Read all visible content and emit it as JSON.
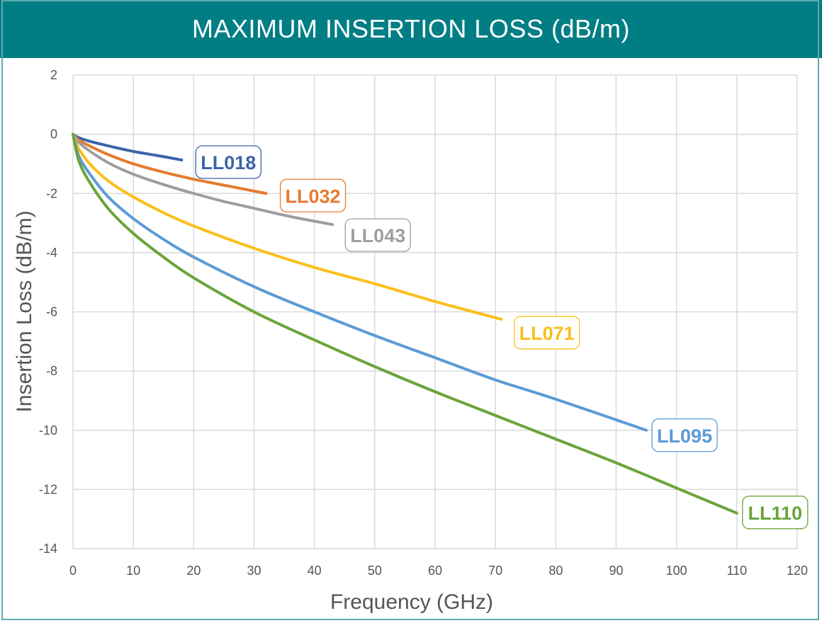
{
  "header": {
    "title": "MAXIMUM INSERTION LOSS (dB/m)"
  },
  "chart_data": {
    "type": "line",
    "title": "MAXIMUM INSERTION LOSS (dB/m)",
    "xlabel": "Frequency (GHz)",
    "ylabel": "Insertion Loss (dB/m)",
    "xlim": [
      0,
      120
    ],
    "ylim": [
      -14,
      2
    ],
    "xticks": [
      0,
      10,
      20,
      30,
      40,
      50,
      60,
      70,
      80,
      90,
      100,
      110,
      120
    ],
    "yticks": [
      2,
      0,
      -2,
      -4,
      -6,
      -8,
      -10,
      -12,
      -14
    ],
    "grid": true,
    "legend": "inline-labels",
    "series": [
      {
        "name": "LL018",
        "color": "#3c64a8",
        "points": [
          [
            0,
            0
          ],
          [
            1,
            -0.12
          ],
          [
            3,
            -0.25
          ],
          [
            6,
            -0.4
          ],
          [
            10,
            -0.58
          ],
          [
            14,
            -0.72
          ],
          [
            18,
            -0.87
          ]
        ]
      },
      {
        "name": "LL032",
        "color": "#e67a30",
        "points": [
          [
            0,
            0
          ],
          [
            1,
            -0.2
          ],
          [
            3,
            -0.42
          ],
          [
            6,
            -0.7
          ],
          [
            10,
            -1.0
          ],
          [
            15,
            -1.28
          ],
          [
            20,
            -1.52
          ],
          [
            26,
            -1.76
          ],
          [
            32,
            -2.0
          ]
        ]
      },
      {
        "name": "LL043",
        "color": "#9e9e9e",
        "points": [
          [
            0,
            0
          ],
          [
            1,
            -0.28
          ],
          [
            3,
            -0.6
          ],
          [
            6,
            -0.98
          ],
          [
            10,
            -1.35
          ],
          [
            15,
            -1.7
          ],
          [
            20,
            -2.0
          ],
          [
            25,
            -2.27
          ],
          [
            30,
            -2.5
          ],
          [
            36,
            -2.78
          ],
          [
            43,
            -3.05
          ]
        ]
      },
      {
        "name": "LL071",
        "color": "#fbbf1a",
        "points": [
          [
            0,
            0
          ],
          [
            1,
            -0.5
          ],
          [
            3,
            -1.05
          ],
          [
            6,
            -1.6
          ],
          [
            10,
            -2.12
          ],
          [
            15,
            -2.65
          ],
          [
            20,
            -3.1
          ],
          [
            30,
            -3.85
          ],
          [
            40,
            -4.5
          ],
          [
            50,
            -5.05
          ],
          [
            60,
            -5.65
          ],
          [
            71,
            -6.25
          ]
        ]
      },
      {
        "name": "LL095",
        "color": "#5b9bd5",
        "points": [
          [
            0,
            0
          ],
          [
            1,
            -0.75
          ],
          [
            3,
            -1.4
          ],
          [
            6,
            -2.15
          ],
          [
            10,
            -2.85
          ],
          [
            15,
            -3.55
          ],
          [
            20,
            -4.15
          ],
          [
            30,
            -5.15
          ],
          [
            40,
            -6.0
          ],
          [
            50,
            -6.8
          ],
          [
            60,
            -7.55
          ],
          [
            70,
            -8.3
          ],
          [
            80,
            -8.95
          ],
          [
            95,
            -10.0
          ]
        ]
      },
      {
        "name": "LL110",
        "color": "#6aa43a",
        "points": [
          [
            0,
            0
          ],
          [
            1,
            -0.92
          ],
          [
            3,
            -1.7
          ],
          [
            6,
            -2.55
          ],
          [
            10,
            -3.35
          ],
          [
            15,
            -4.15
          ],
          [
            20,
            -4.85
          ],
          [
            30,
            -6.0
          ],
          [
            40,
            -6.95
          ],
          [
            50,
            -7.85
          ],
          [
            60,
            -8.7
          ],
          [
            70,
            -9.5
          ],
          [
            80,
            -10.3
          ],
          [
            90,
            -11.1
          ],
          [
            100,
            -11.95
          ],
          [
            110,
            -12.8
          ]
        ]
      }
    ],
    "labels": [
      {
        "series": "LL018",
        "text": "LL018"
      },
      {
        "series": "LL032",
        "text": "LL032"
      },
      {
        "series": "LL043",
        "text": "LL043"
      },
      {
        "series": "LL071",
        "text": "LL071"
      },
      {
        "series": "LL095",
        "text": "LL095"
      },
      {
        "series": "LL110",
        "text": "LL110"
      }
    ]
  }
}
